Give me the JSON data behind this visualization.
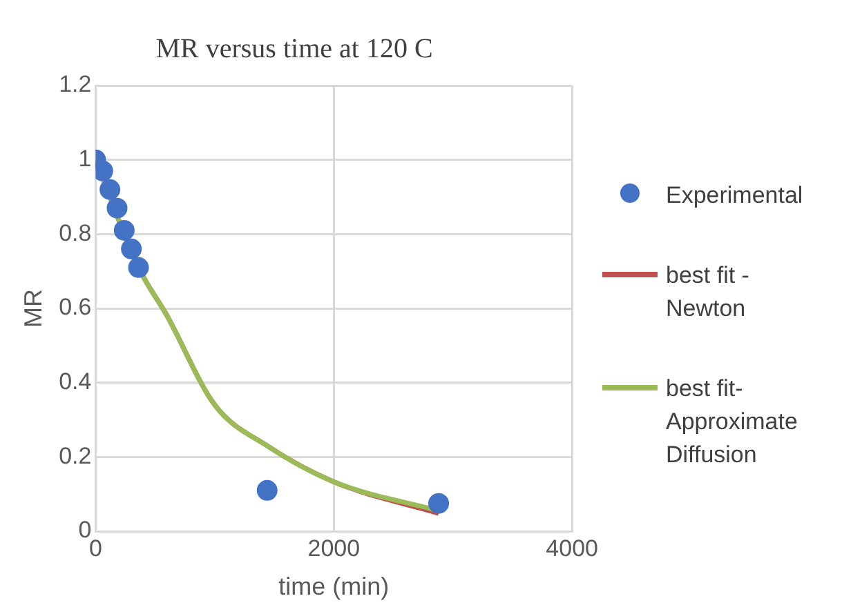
{
  "chart_data": {
    "type": "scatter",
    "title": "MR versus time at 120 C",
    "xlabel": "time (min)",
    "ylabel": "MR",
    "xlim": [
      0,
      4000
    ],
    "xticks": [
      0,
      2000,
      4000
    ],
    "ylim": [
      0,
      1.2
    ],
    "yticks": [
      0,
      0.2,
      0.4,
      0.6,
      0.8,
      1,
      1.2
    ],
    "grid": true,
    "legend": "right",
    "series": [
      {
        "name": "Experimental",
        "marker": "circle",
        "color": "#4472c4",
        "x": [
          0,
          60,
          120,
          180,
          240,
          300,
          360,
          1440,
          2880
        ],
        "values": [
          1,
          0.97,
          0.92,
          0.87,
          0.81,
          0.76,
          0.71,
          0.11,
          0.075
        ]
      },
      {
        "name": "best fit - Newton",
        "type": "line",
        "marker": "none",
        "color": "#c0504d",
        "x": [
          0,
          360,
          600,
          1000,
          1440,
          2000,
          2880
        ],
        "values": [
          1,
          0.71,
          0.58,
          0.34,
          0.23,
          0.133,
          0.048
        ]
      },
      {
        "name": "best fit-Approximate Diffusion",
        "type": "line",
        "marker": "none",
        "color": "#9bbb59",
        "x": [
          0,
          360,
          600,
          1000,
          1440,
          2000,
          2880
        ],
        "values": [
          1,
          0.71,
          0.58,
          0.34,
          0.23,
          0.133,
          0.055
        ]
      }
    ]
  }
}
